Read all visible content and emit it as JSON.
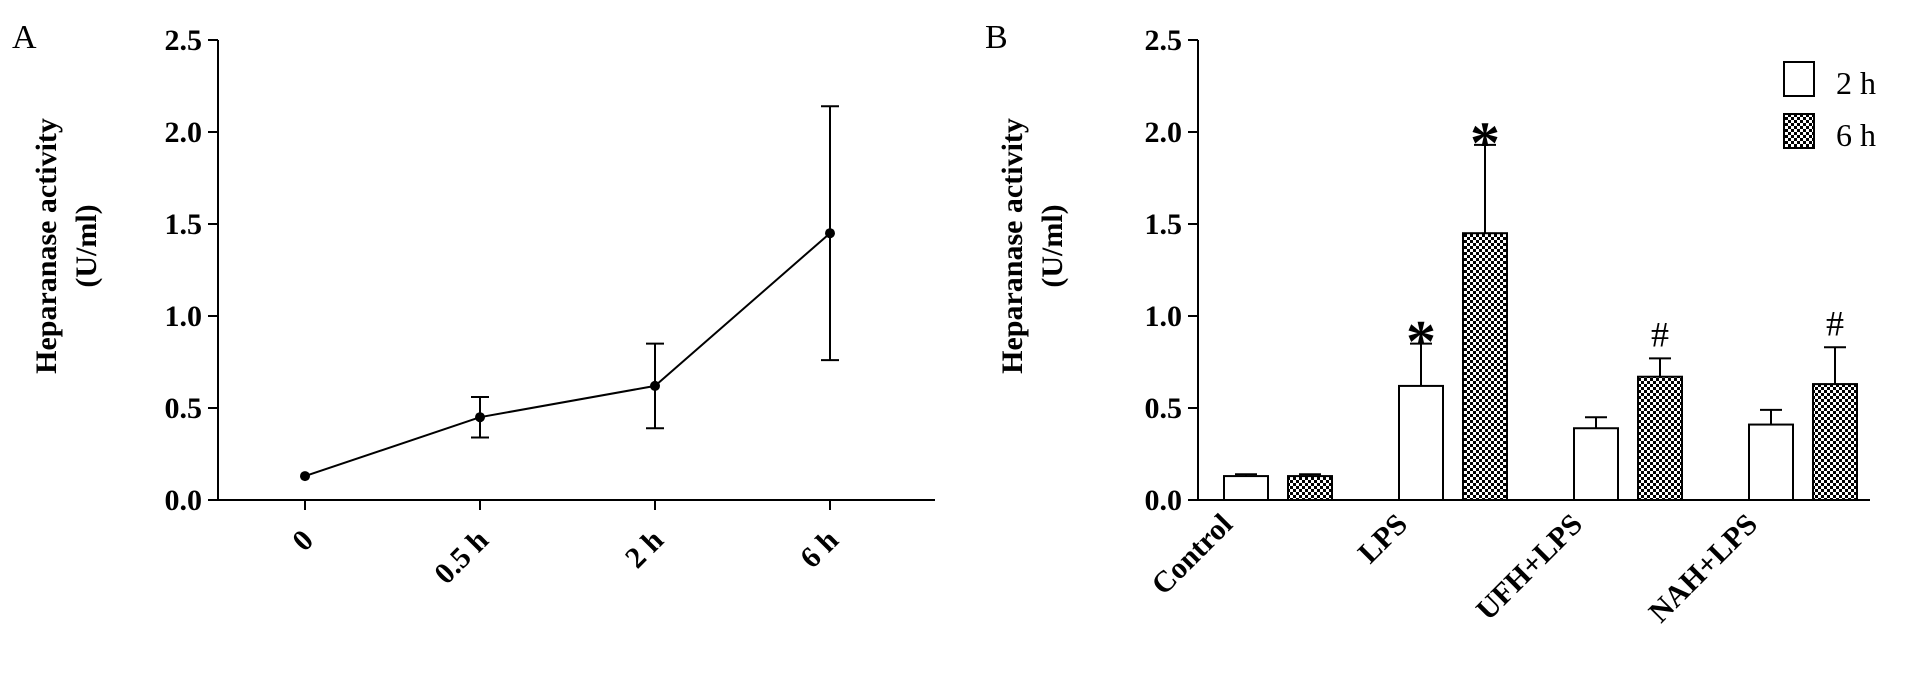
{
  "chart_data": [
    {
      "type": "line",
      "panel_label": "A",
      "ylabel": "Heparanase activity",
      "ylabel_unit": "(U/ml)",
      "categories": [
        "0",
        "0.5 h",
        "2 h",
        "6 h"
      ],
      "values": [
        0.13,
        0.45,
        0.62,
        1.45
      ],
      "error": [
        0.0,
        0.11,
        0.23,
        0.69
      ],
      "ylim": [
        0,
        2.5
      ],
      "yticks": [
        "0.0",
        "0.5",
        "1.0",
        "1.5",
        "2.0",
        "2.5"
      ],
      "grid": false
    },
    {
      "type": "bar",
      "panel_label": "B",
      "ylabel": "Heparanase activity",
      "ylabel_unit": "(U/ml)",
      "categories": [
        "Control",
        "LPS",
        "UFH+LPS",
        "NAH+LPS"
      ],
      "series": [
        {
          "name": "2 h",
          "values": [
            0.13,
            0.62,
            0.39,
            0.41
          ],
          "error": [
            0.01,
            0.23,
            0.06,
            0.08
          ],
          "pattern": "open"
        },
        {
          "name": "6 h",
          "values": [
            0.13,
            1.45,
            0.67,
            0.63
          ],
          "error": [
            0.01,
            0.48,
            0.1,
            0.2
          ],
          "pattern": "checkered"
        }
      ],
      "annotations": [
        {
          "category": "LPS",
          "series": "2 h",
          "text": "*"
        },
        {
          "category": "LPS",
          "series": "6 h",
          "text": "*"
        },
        {
          "category": "UFH+LPS",
          "series": "6 h",
          "text": "#"
        },
        {
          "category": "NAH+LPS",
          "series": "6 h",
          "text": "#"
        }
      ],
      "ylim": [
        0,
        2.5
      ],
      "yticks": [
        "0.0",
        "0.5",
        "1.0",
        "1.5",
        "2.0",
        "2.5"
      ],
      "legend_position": "top-right",
      "grid": false
    }
  ]
}
